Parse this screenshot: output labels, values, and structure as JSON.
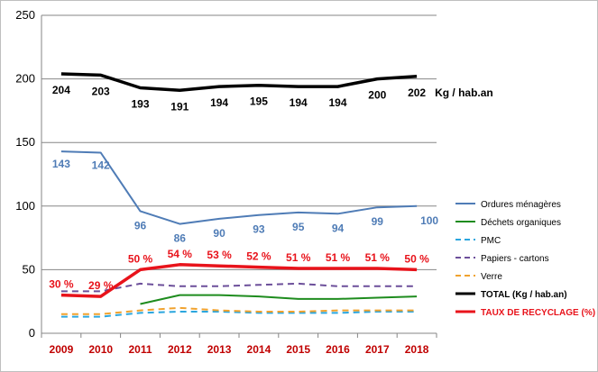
{
  "chart_data": {
    "type": "line",
    "x": [
      "2009",
      "2010",
      "2011",
      "2012",
      "2013",
      "2014",
      "2015",
      "2016",
      "2017",
      "2018"
    ],
    "ylim": [
      0,
      250
    ],
    "yticks": [
      0,
      50,
      100,
      150,
      200,
      250
    ],
    "ytick_labels": [
      "0",
      "50",
      "100",
      "150",
      "200",
      "250"
    ],
    "grid": true,
    "legend_position": "right",
    "total_unit_label": "Kg / hab.an",
    "series": [
      {
        "name": "Ordures ménagères",
        "color": "#4F7CB6",
        "style": "solid",
        "values": [
          143,
          142,
          96,
          86,
          90,
          93,
          95,
          94,
          99,
          100
        ],
        "labels": [
          "143",
          "142",
          "96",
          "86",
          "90",
          "93",
          "95",
          "94",
          "99",
          "100"
        ],
        "label_color": "#4F7CB6"
      },
      {
        "name": "Déchets organiques",
        "color": "#1E8C1E",
        "style": "solid",
        "values": [
          null,
          null,
          23,
          30,
          30,
          29,
          27,
          27,
          28,
          29
        ]
      },
      {
        "name": "PMC",
        "color": "#2BA6DE",
        "style": "dashed",
        "values": [
          13,
          13,
          16,
          17,
          17,
          16,
          16,
          16,
          17,
          17
        ]
      },
      {
        "name": "Papiers - cartons",
        "color": "#6C4F9A",
        "style": "dashed",
        "values": [
          33,
          33,
          39,
          37,
          37,
          38,
          39,
          37,
          37,
          37
        ]
      },
      {
        "name": "Verre",
        "color": "#F0A22E",
        "style": "dashed",
        "values": [
          15,
          15,
          18,
          20,
          18,
          17,
          17,
          18,
          18,
          18
        ]
      },
      {
        "name": "TOTAL  (Kg / hab.an)",
        "color": "#000000",
        "style": "solid",
        "values": [
          204,
          203,
          193,
          191,
          194,
          195,
          194,
          194,
          200,
          202
        ],
        "labels": [
          "204",
          "203",
          "193",
          "191",
          "194",
          "195",
          "194",
          "194",
          "200",
          "202"
        ],
        "label_color": "#000000"
      },
      {
        "name": "TAUX DE RECYCLAGE (%)",
        "color": "#E8131B",
        "style": "solid",
        "values": [
          30,
          29,
          50,
          54,
          53,
          52,
          51,
          51,
          51,
          50
        ],
        "labels": [
          "30 %",
          "29 %",
          "50 %",
          "54 %",
          "53 %",
          "52 %",
          "51 %",
          "51 %",
          "51 %",
          "50 %"
        ],
        "label_color": "#E8131B"
      }
    ],
    "xtick_color": "#C00000"
  }
}
